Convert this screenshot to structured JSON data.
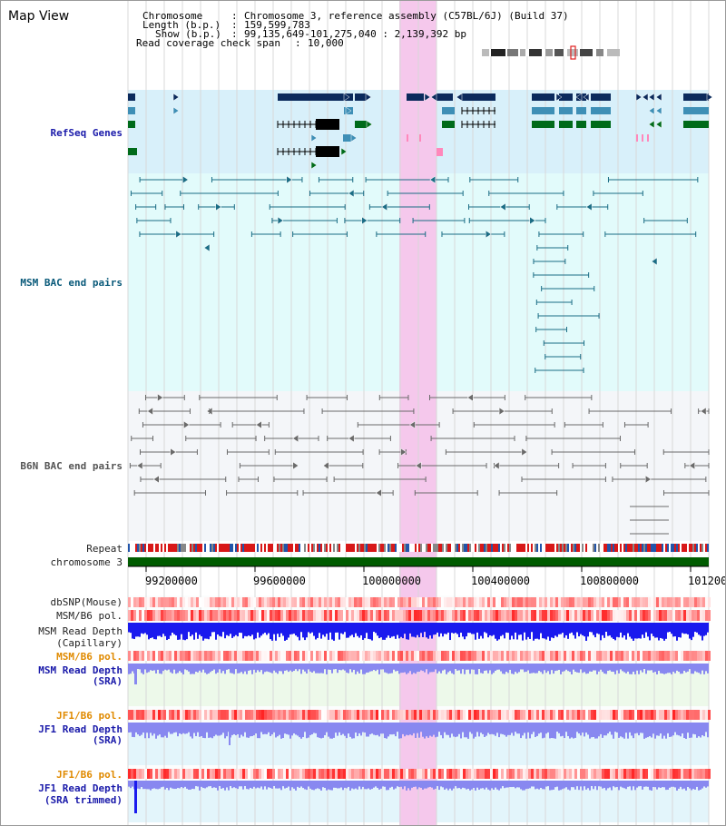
{
  "view_title": "Map View",
  "header": {
    "chromosome_key": "Chromosome",
    "chromosome_value": "Chromosome 3, reference assembly (C57BL/6J) (Build 37)",
    "length_key": "Length (b.p.)",
    "length_value": "159,599,783",
    "show_key": "Show (b.p.)",
    "show_value": "99,135,649-101,275,040 : 2,139,392 bp",
    "coverage_key": "Read coverage check span",
    "coverage_value": "10,000"
  },
  "tracks": {
    "refseq": "RefSeq Genes",
    "msm_bac": "MSM BAC end pairs",
    "b6n_bac": "B6N BAC end pairs",
    "repeat": "Repeat",
    "chromosome": "chromosome 3",
    "dbsnp": "dbSNP(Mouse)",
    "msm_pol_1": "MSM/B6 pol.",
    "msm_depth_cap_1": "MSM Read Depth",
    "msm_depth_cap_2": "(Capillary)",
    "msm_pol_2": "MSM/B6 pol.",
    "msm_depth_sra_1": "MSM Read Depth",
    "msm_depth_sra_2": "(SRA)",
    "jf1_pol_1": "JF1/B6 pol.",
    "jf1_depth_sra_1": "JF1 Read Depth",
    "jf1_depth_sra_2": "(SRA)",
    "jf1_pol_2": "JF1/B6 pol.",
    "jf1_depth_trim_1": "JF1 Read Depth",
    "jf1_depth_trim_2": "(SRA trimmed)"
  },
  "axis_ticks": [
    "99200000",
    "99600000",
    "100000000",
    "100400000",
    "100800000",
    "101200"
  ],
  "colors": {
    "highlight": "#f5c8ec",
    "refseq_bg": "#d8f0fa",
    "msm_bg": "#e2fbfb",
    "b6n_bg": "#f4f6f9",
    "gene_dark": "#0b2a5c",
    "gene_blue": "#3e8fb6",
    "gene_green": "#006b1a",
    "bac_teal": "#1b6d85",
    "bac_grey": "#6a6a6a",
    "chrom_green": "#005c00",
    "depth_blue": "#1a1aee",
    "depth_light": "#8888f0"
  }
}
